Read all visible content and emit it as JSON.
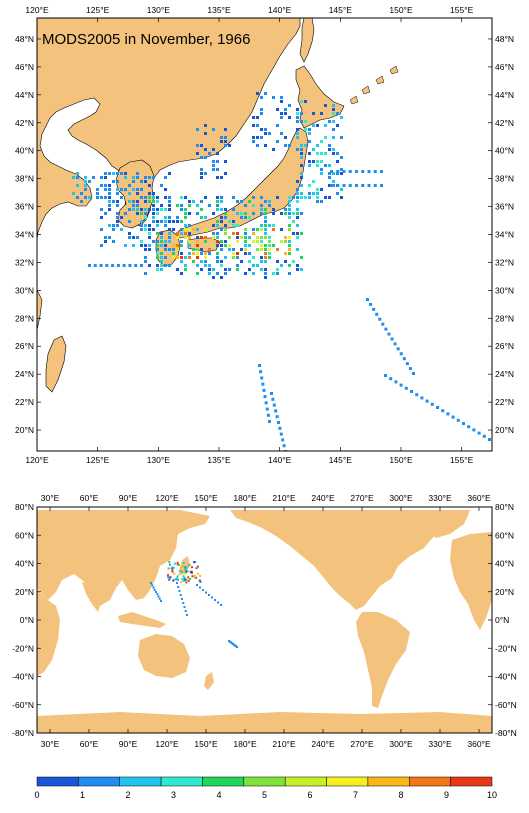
{
  "top_map": {
    "title": "MODS2005 in November, 1966",
    "lon_labels": [
      "120°E",
      "125°E",
      "130°E",
      "135°E",
      "140°E",
      "145°E",
      "150°E",
      "155°E"
    ],
    "lat_labels": [
      "48°N",
      "46°N",
      "44°N",
      "42°N",
      "40°N",
      "38°N",
      "36°N",
      "34°N",
      "32°N",
      "30°N",
      "28°N",
      "26°N",
      "24°N",
      "22°N",
      "20°N"
    ],
    "lon_range": [
      120,
      157.5
    ],
    "lat_range": [
      18.5,
      49.5
    ]
  },
  "world_map": {
    "lon_labels": [
      "30°E",
      "60°E",
      "90°E",
      "120°E",
      "150°E",
      "180°E",
      "210°E",
      "240°E",
      "270°E",
      "300°E",
      "330°E",
      "360°E"
    ],
    "lat_labels": [
      "80°N",
      "60°N",
      "40°N",
      "20°N",
      "0°N",
      "-20°N",
      "-40°N",
      "-60°N",
      "-80°N"
    ],
    "lon_range": [
      20,
      370
    ],
    "lat_range": [
      -80,
      80
    ]
  },
  "colorbar": {
    "labels": [
      "0",
      "1",
      "2",
      "3",
      "4",
      "5",
      "6",
      "7",
      "8",
      "9",
      "10"
    ],
    "colors": [
      "#1a55d6",
      "#1e8ef0",
      "#22c4ee",
      "#2ee8d0",
      "#22d45a",
      "#7ee23a",
      "#c8f02a",
      "#f4f020",
      "#f8b818",
      "#f07814",
      "#e83818"
    ]
  },
  "colors": {
    "land": "#f3c27c",
    "ocean": "#ffffff"
  }
}
